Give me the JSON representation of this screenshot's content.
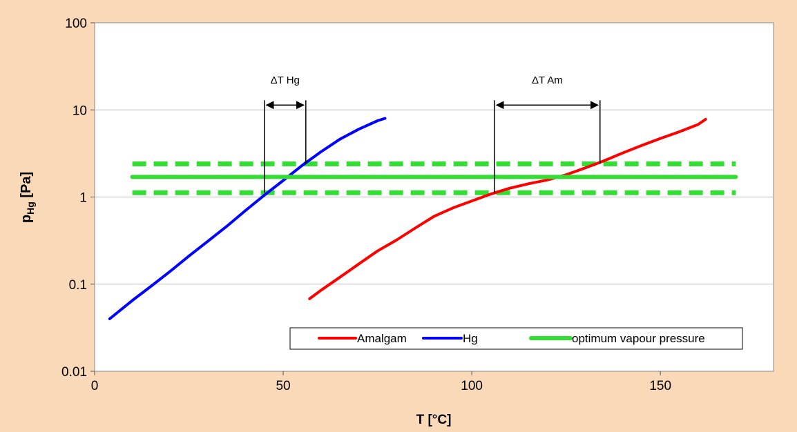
{
  "chart_data": {
    "type": "line",
    "xlabel": "T [°C]",
    "ylabel": {
      "main": "p",
      "sub": "Hg",
      "unit": " [Pa]"
    },
    "xlim": [
      0,
      180
    ],
    "ylim": [
      0.01,
      100
    ],
    "yscale": "log",
    "x_ticks": [
      0,
      50,
      100,
      150
    ],
    "x_tick_labels": [
      "0",
      "50",
      "100",
      "150"
    ],
    "y_ticks": [
      0.01,
      0.1,
      1,
      10,
      100
    ],
    "y_tick_labels": [
      "0.01",
      "0.1",
      "1",
      "10",
      "100"
    ],
    "grid": {
      "horizontal": true,
      "vertical": false
    },
    "legend_position": "bottom-right",
    "series": [
      {
        "name": "Amalgam",
        "color": "#ff0000",
        "style": "solid",
        "x": [
          57,
          60,
          65,
          70,
          75,
          80,
          85,
          90,
          95,
          100,
          105,
          110,
          115,
          120,
          125,
          130,
          135,
          140,
          145,
          150,
          155,
          160,
          162
        ],
        "y": [
          0.068,
          0.085,
          0.12,
          0.17,
          0.24,
          0.32,
          0.44,
          0.6,
          0.75,
          0.9,
          1.08,
          1.26,
          1.42,
          1.57,
          1.8,
          2.15,
          2.6,
          3.2,
          3.9,
          4.7,
          5.6,
          6.8,
          7.8
        ]
      },
      {
        "name": "Hg",
        "color": "#0000ff",
        "style": "solid",
        "x": [
          4,
          10,
          15,
          20,
          25,
          30,
          35,
          40,
          45,
          50,
          55,
          60,
          65,
          70,
          75,
          77
        ],
        "y": [
          0.04,
          0.065,
          0.095,
          0.14,
          0.21,
          0.31,
          0.46,
          0.7,
          1.05,
          1.55,
          2.3,
          3.3,
          4.6,
          6.0,
          7.5,
          8.0
        ]
      },
      {
        "name": "optimum vapour pressure",
        "color": "#33dd33",
        "style": "solid",
        "x": [
          10,
          170
        ],
        "y": [
          1.7,
          1.7
        ]
      }
    ],
    "band_lines": {
      "color": "#33dd33",
      "style": "dashed",
      "x": [
        10,
        170
      ],
      "y_values": [
        2.4,
        1.12
      ]
    },
    "annotations": [
      {
        "label": "ΔT Hg",
        "x_from": 45,
        "x_to": 56,
        "y_bottom": 1.12,
        "y_bottom_right": 2.4,
        "y_arrow": 10,
        "y_label": 22
      },
      {
        "label": "ΔT Am",
        "x_from": 106,
        "x_to": 134,
        "y_bottom": 1.12,
        "y_bottom_right": 2.4,
        "y_arrow": 10,
        "y_label": 22
      }
    ]
  }
}
